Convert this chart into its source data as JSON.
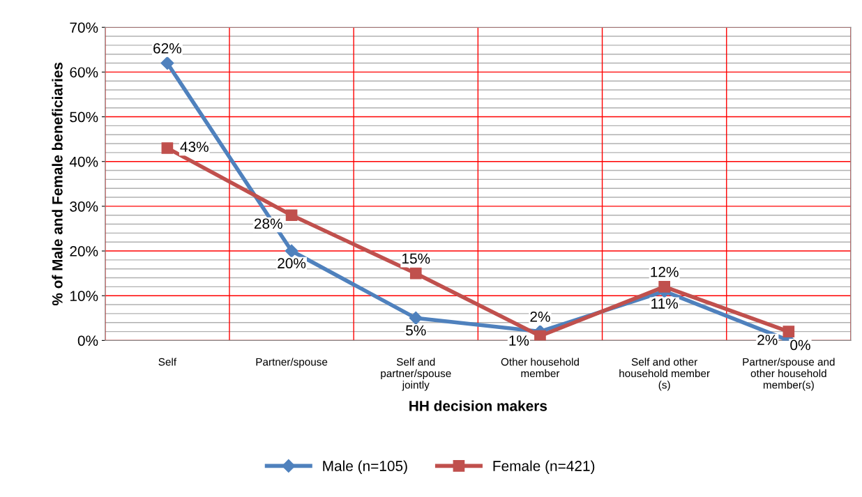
{
  "chart_data": {
    "type": "line",
    "xlabel": "HH decision makers",
    "ylabel": "% of Male and Female beneficiaries",
    "categories": [
      "Self",
      "Partner/spouse",
      "Self and\npartner/spouse\njointly",
      "Other household\nmember",
      "Self and other\nhousehold member\n(s)",
      "Partner/spouse and\nother household\nmember(s)"
    ],
    "series": [
      {
        "name": "Male (n=105)",
        "color": "#4f81bd",
        "marker": "diamond",
        "values": [
          62,
          20,
          5,
          2,
          11,
          0
        ],
        "value_labels": [
          "62%",
          "20%",
          "5%",
          "2%",
          "11%",
          "0%"
        ]
      },
      {
        "name": "Female (n=421)",
        "color": "#c0504d",
        "marker": "square",
        "values": [
          43,
          28,
          15,
          1,
          12,
          2
        ],
        "value_labels": [
          "43%",
          "28%",
          "15%",
          "1%",
          "12%",
          "2%"
        ]
      }
    ],
    "ylim": [
      0,
      70
    ],
    "yticks": [
      {
        "value": 0,
        "label": "0%"
      },
      {
        "value": 10,
        "label": "10%"
      },
      {
        "value": 20,
        "label": "20%"
      },
      {
        "value": 30,
        "label": "30%"
      },
      {
        "value": 40,
        "label": "40%"
      },
      {
        "value": 50,
        "label": "50%"
      },
      {
        "value": 60,
        "label": "60%"
      },
      {
        "value": 70,
        "label": "70%"
      }
    ],
    "grid": true,
    "legend": "bottom",
    "line_style": "solid"
  }
}
